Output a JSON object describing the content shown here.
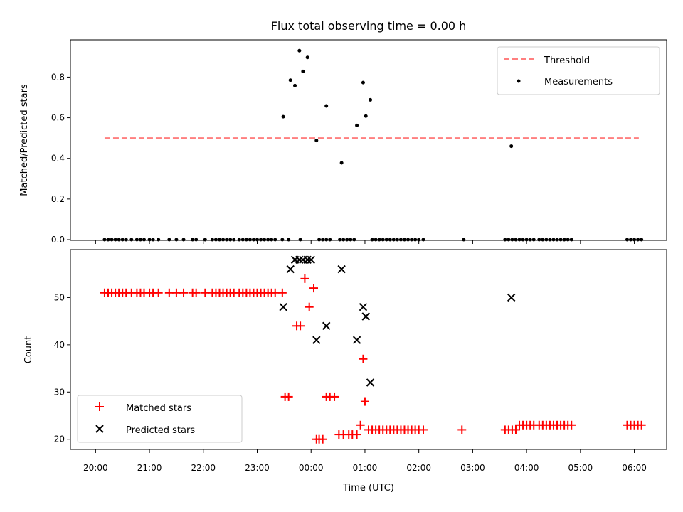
{
  "chart_data": [
    {
      "type": "scatter",
      "title": "Flux total observing time = 0.00 h",
      "xlabel": "",
      "ylabel": "Matched/Predicted stars",
      "xlim": [
        "19:32",
        "06:36"
      ],
      "ylim": [
        0,
        0.98
      ],
      "yticks": [
        "0.0",
        "0.2",
        "0.4",
        "0.6",
        "0.8"
      ],
      "legend_position": "top-right",
      "threshold": {
        "name": "Threshold",
        "value": 0.5,
        "x_start": "20:10",
        "x_end": "06:05",
        "color": "#ff7f7f",
        "style": "dashed"
      },
      "series": [
        {
          "name": "Measurements",
          "color": "#000000",
          "marker": "dot",
          "x": [
            "20:10",
            "20:14",
            "20:18",
            "20:22",
            "20:26",
            "20:30",
            "20:34",
            "20:40",
            "20:46",
            "20:50",
            "20:54",
            "21:00",
            "21:04",
            "21:10",
            "21:22",
            "21:30",
            "21:38",
            "21:48",
            "21:52",
            "22:02",
            "22:10",
            "22:14",
            "22:18",
            "22:22",
            "22:26",
            "22:30",
            "22:34",
            "22:40",
            "22:44",
            "22:48",
            "22:52",
            "22:56",
            "23:00",
            "23:04",
            "23:08",
            "23:12",
            "23:16",
            "23:20",
            "23:28",
            "23:35",
            "23:48",
            "00:09",
            "00:13",
            "00:17",
            "00:21",
            "00:32",
            "00:36",
            "00:40",
            "00:44",
            "00:48",
            "01:08",
            "01:12",
            "01:16",
            "01:20",
            "01:24",
            "01:28",
            "01:32",
            "01:36",
            "01:40",
            "01:44",
            "01:48",
            "01:52",
            "01:56",
            "02:00",
            "02:05",
            "02:50",
            "03:36",
            "03:40",
            "03:44",
            "03:48",
            "03:52",
            "03:56",
            "04:00",
            "04:04",
            "04:08",
            "04:14",
            "04:18",
            "04:22",
            "04:26",
            "04:30",
            "04:34",
            "04:38",
            "04:42",
            "04:46",
            "04:50",
            "05:52",
            "05:56",
            "06:00",
            "06:04",
            "06:08",
            "23:29",
            "23:37",
            "23:42",
            "23:47",
            "23:51",
            "23:56",
            "00:06",
            "00:17",
            "00:34",
            "00:51",
            "00:58",
            "01:01",
            "01:06",
            "03:43"
          ],
          "y": [
            0,
            0,
            0,
            0,
            0,
            0,
            0,
            0,
            0,
            0,
            0,
            0,
            0,
            0,
            0,
            0,
            0,
            0,
            0,
            0,
            0,
            0,
            0,
            0,
            0,
            0,
            0,
            0,
            0,
            0,
            0,
            0,
            0,
            0,
            0,
            0,
            0,
            0,
            0,
            0,
            0,
            0,
            0,
            0,
            0,
            0,
            0,
            0,
            0,
            0,
            0,
            0,
            0,
            0,
            0,
            0,
            0,
            0,
            0,
            0,
            0,
            0,
            0,
            0,
            0,
            0,
            0,
            0,
            0,
            0,
            0,
            0,
            0,
            0,
            0,
            0,
            0,
            0,
            0,
            0,
            0,
            0,
            0,
            0,
            0,
            0,
            0,
            0,
            0,
            0,
            0.605,
            0.785,
            0.758,
            0.93,
            0.828,
            0.897,
            0.488,
            0.658,
            0.378,
            0.562,
            0.773,
            0.608,
            0.688,
            0.46
          ]
        }
      ]
    },
    {
      "type": "scatter",
      "title": "",
      "xlabel": "Time (UTC)",
      "ylabel": "Count",
      "xlim": [
        "19:32",
        "06:36"
      ],
      "ylim": [
        18,
        60
      ],
      "yticks": [
        "20",
        "30",
        "40",
        "50"
      ],
      "xticks": [
        "20:00",
        "21:00",
        "22:00",
        "23:00",
        "00:00",
        "01:00",
        "02:00",
        "03:00",
        "04:00",
        "05:00",
        "06:00"
      ],
      "legend_position": "bottom-left",
      "series": [
        {
          "name": "Matched stars",
          "color": "#ff0000",
          "marker": "plus",
          "x": [
            "20:10",
            "20:14",
            "20:18",
            "20:22",
            "20:26",
            "20:30",
            "20:34",
            "20:40",
            "20:46",
            "20:50",
            "20:54",
            "21:00",
            "21:04",
            "21:10",
            "21:22",
            "21:30",
            "21:38",
            "21:48",
            "21:52",
            "22:02",
            "22:10",
            "22:14",
            "22:18",
            "22:22",
            "22:26",
            "22:30",
            "22:34",
            "22:40",
            "22:44",
            "22:48",
            "22:52",
            "22:56",
            "23:00",
            "23:04",
            "23:08",
            "23:12",
            "23:16",
            "23:20",
            "23:28",
            "23:31",
            "23:35",
            "23:44",
            "23:48",
            "23:53",
            "23:58",
            "00:03",
            "00:06",
            "00:09",
            "00:13",
            "00:17",
            "00:21",
            "00:26",
            "00:31",
            "00:36",
            "00:42",
            "00:46",
            "00:51",
            "00:55",
            "00:58",
            "01:00",
            "01:04",
            "01:08",
            "01:12",
            "01:16",
            "01:20",
            "01:24",
            "01:28",
            "01:32",
            "01:36",
            "01:40",
            "01:44",
            "01:48",
            "01:52",
            "01:56",
            "02:00",
            "02:05",
            "02:48",
            "03:36",
            "03:40",
            "03:44",
            "03:48",
            "03:52",
            "03:56",
            "04:00",
            "04:04",
            "04:08",
            "04:14",
            "04:18",
            "04:22",
            "04:26",
            "04:30",
            "04:34",
            "04:38",
            "04:42",
            "04:46",
            "04:50",
            "05:52",
            "05:56",
            "06:00",
            "06:04",
            "06:08"
          ],
          "y": [
            51,
            51,
            51,
            51,
            51,
            51,
            51,
            51,
            51,
            51,
            51,
            51,
            51,
            51,
            51,
            51,
            51,
            51,
            51,
            51,
            51,
            51,
            51,
            51,
            51,
            51,
            51,
            51,
            51,
            51,
            51,
            51,
            51,
            51,
            51,
            51,
            51,
            51,
            51,
            29,
            29,
            44,
            44,
            54,
            48,
            52,
            20,
            20,
            20,
            29,
            29,
            29,
            21,
            21,
            21,
            21,
            21,
            23,
            37,
            28,
            22,
            22,
            22,
            22,
            22,
            22,
            22,
            22,
            22,
            22,
            22,
            22,
            22,
            22,
            22,
            22,
            22,
            22,
            22,
            22,
            22,
            23,
            23,
            23,
            23,
            23,
            23,
            23,
            23,
            23,
            23,
            23,
            23,
            23,
            23,
            23,
            23,
            23,
            23,
            23,
            23
          ]
        },
        {
          "name": "Predicted stars",
          "color": "#000000",
          "marker": "x",
          "x": [
            "23:29",
            "23:37",
            "23:42",
            "23:47",
            "23:51",
            "23:56",
            "00:00",
            "00:06",
            "00:17",
            "00:34",
            "00:51",
            "00:58",
            "01:01",
            "01:06",
            "03:43"
          ],
          "y": [
            48,
            56,
            58,
            58,
            58,
            58,
            58,
            41,
            44,
            56,
            41,
            48,
            46,
            32,
            50
          ]
        }
      ]
    }
  ]
}
